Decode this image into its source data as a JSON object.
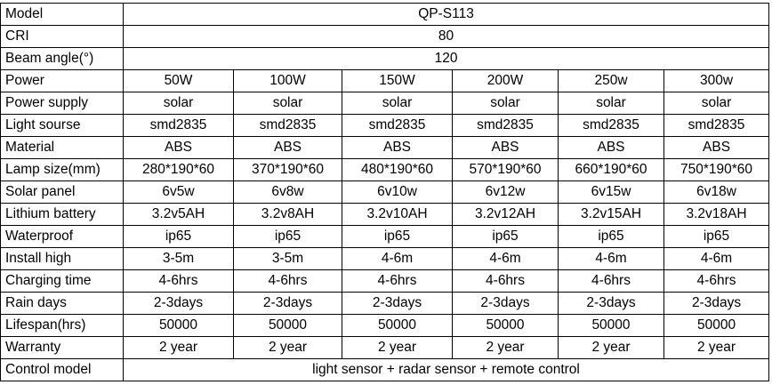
{
  "table": {
    "rows": [
      [
        "Model",
        "QP-S113"
      ],
      [
        "CRI",
        "80"
      ],
      [
        "Beam angle(°)",
        "120"
      ],
      [
        "Power",
        "50W",
        "100W",
        "150W",
        "200W",
        "250w",
        "300w"
      ],
      [
        "Power supply",
        "solar",
        "solar",
        "solar",
        "solar",
        "solar",
        "solar"
      ],
      [
        "Light sourse",
        "smd2835",
        "smd2835",
        "smd2835",
        "smd2835",
        "smd2835",
        "smd2835"
      ],
      [
        "Material",
        "ABS",
        "ABS",
        "ABS",
        "ABS",
        "ABS",
        "ABS"
      ],
      [
        "Lamp size(mm)",
        "280*190*60",
        "370*190*60",
        "480*190*60",
        "570*190*60",
        "660*190*60",
        "750*190*60"
      ],
      [
        "Solar panel",
        "6v5w",
        "6v8w",
        "6v10w",
        "6v12w",
        "6v15w",
        "6v18w"
      ],
      [
        "Lithium battery",
        "3.2v5AH",
        "3.2v8AH",
        "3.2v10AH",
        "3.2v12AH",
        "3.2v15AH",
        "3.2v18AH"
      ],
      [
        "Waterproof",
        "ip65",
        "ip65",
        "ip65",
        "ip65",
        "ip65",
        "ip65"
      ],
      [
        "Install high",
        "3-5m",
        "3-5m",
        "4-6m",
        "4-6m",
        "4-6m",
        "4-6m"
      ],
      [
        "Charging time",
        "4-6hrs",
        "4-6hrs",
        "4-6hrs",
        "4-6hrs",
        "4-6hrs",
        "4-6hrs"
      ],
      [
        "Rain days",
        "2-3days",
        "2-3days",
        "2-3days",
        "2-3days",
        "2-3days",
        "2-3days"
      ],
      [
        "Lifespan(hrs)",
        "50000",
        "50000",
        "50000",
        "50000",
        "50000",
        "50000"
      ],
      [
        "Warranty",
        "2 year",
        "2 year",
        "2 year",
        "2 year",
        "2 year",
        "2 year"
      ],
      [
        "Control model",
        "light sensor + radar sensor + remote control"
      ]
    ]
  }
}
